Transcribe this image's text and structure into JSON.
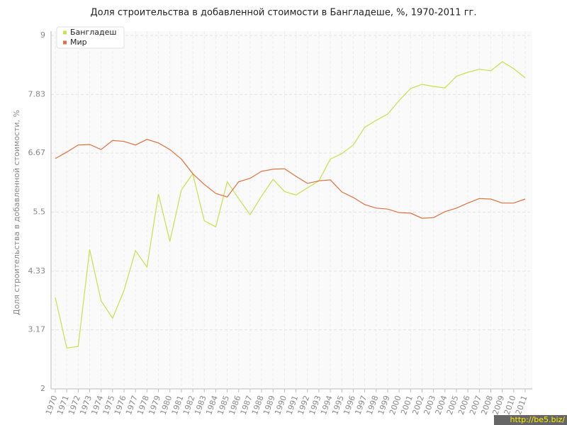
{
  "chart_data": {
    "type": "line",
    "title": "Доля строительства в добавленной стоимости в Бангладеше, %, 1970-2011 гг.",
    "y_label": "Доля строительства в добавленной стоимости, %",
    "watermark": "http://be5.biz/",
    "categories": [
      "1970",
      "1971",
      "1972",
      "1973",
      "1974",
      "1975",
      "1976",
      "1977",
      "1978",
      "1979",
      "1980",
      "1981",
      "1982",
      "1983",
      "1984",
      "1985",
      "1986",
      "1987",
      "1988",
      "1989",
      "1990",
      "1991",
      "1992",
      "1993",
      "1994",
      "1995",
      "1996",
      "1997",
      "1998",
      "1999",
      "2000",
      "2001",
      "2002",
      "2003",
      "2004",
      "2005",
      "2006",
      "2007",
      "2008",
      "2009",
      "2010",
      "2011"
    ],
    "series": [
      {
        "name": "Бангладеш",
        "color": "#c8e04c",
        "values": [
          3.81,
          2.81,
          2.84,
          4.76,
          3.74,
          3.4,
          3.95,
          4.74,
          4.41,
          5.86,
          4.92,
          5.94,
          6.26,
          5.33,
          5.21,
          6.1,
          5.77,
          5.45,
          5.82,
          6.15,
          5.91,
          5.84,
          5.98,
          6.12,
          6.55,
          6.66,
          6.83,
          7.18,
          7.32,
          7.44,
          7.71,
          7.95,
          8.03,
          7.99,
          7.96,
          8.19,
          8.27,
          8.33,
          8.3,
          8.48,
          8.34,
          8.16
        ]
      },
      {
        "name": "Мир",
        "color": "#e0703e",
        "values": [
          6.56,
          6.69,
          6.83,
          6.84,
          6.74,
          6.92,
          6.9,
          6.83,
          6.94,
          6.87,
          6.74,
          6.55,
          6.26,
          6.05,
          5.87,
          5.8,
          6.1,
          6.17,
          6.31,
          6.35,
          6.36,
          6.21,
          6.07,
          6.12,
          6.14,
          5.9,
          5.79,
          5.65,
          5.58,
          5.56,
          5.49,
          5.48,
          5.38,
          5.39,
          5.51,
          5.58,
          5.68,
          5.77,
          5.76,
          5.68,
          5.68,
          5.76
        ]
      }
    ],
    "ylim": [
      2,
      9
    ],
    "yticks": [
      2,
      3.17,
      4.33,
      5.5,
      6.67,
      7.83,
      9
    ],
    "grid": true,
    "legend": "top-left"
  }
}
